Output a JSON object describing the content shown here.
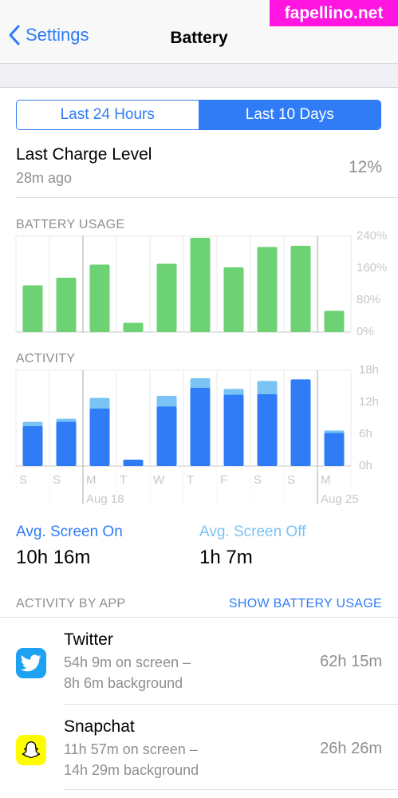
{
  "nav": {
    "back_label": "Settings",
    "title": "Battery"
  },
  "watermark": "fapellino.net",
  "segments": {
    "left": "Last 24 Hours",
    "right": "Last 10 Days",
    "selected": "right"
  },
  "last_charge": {
    "label": "Last Charge Level",
    "ago": "28m ago",
    "value": "12%"
  },
  "colors": {
    "accent": "#2f7cf6",
    "usage_green": "#6dd274",
    "screen_on": "#2f7cf6",
    "screen_off": "#7ac3f4"
  },
  "chart_data": [
    {
      "type": "bar",
      "title": "BATTERY USAGE",
      "categories": [
        "S",
        "S",
        "M",
        "T",
        "W",
        "T",
        "F",
        "S",
        "S",
        "M"
      ],
      "values": [
        117,
        136,
        169,
        23,
        171,
        236,
        162,
        213,
        216,
        53
      ],
      "y_ticks": [
        "240%",
        "160%",
        "80%",
        "0%"
      ],
      "ylim": [
        0,
        240
      ],
      "unit": "%"
    },
    {
      "type": "bar",
      "title": "ACTIVITY",
      "categories": [
        "S",
        "S",
        "M",
        "T",
        "W",
        "T",
        "F",
        "S",
        "S",
        "M"
      ],
      "series": [
        {
          "name": "Avg. Screen On",
          "values": [
            7.5,
            8.3,
            10.8,
            1.2,
            11.2,
            14.7,
            13.4,
            13.5,
            16.3,
            6.2
          ]
        },
        {
          "name": "Avg. Screen Off",
          "values": [
            0.8,
            0.6,
            2.0,
            0,
            2.0,
            1.8,
            1.1,
            2.5,
            0,
            0.5
          ]
        }
      ],
      "stacked": true,
      "y_ticks": [
        "18h",
        "12h",
        "6h",
        "0h"
      ],
      "ylim": [
        0,
        18
      ],
      "date_labels": [
        "Aug 18",
        "Aug 25"
      ]
    }
  ],
  "avg": {
    "on_label": "Avg. Screen On",
    "on_value": "10h 16m",
    "off_label": "Avg. Screen Off",
    "off_value": "1h 7m"
  },
  "activity_by_app": {
    "label": "ACTIVITY BY APP",
    "link": "SHOW BATTERY USAGE"
  },
  "apps": [
    {
      "name": "Twitter",
      "icon": "twitter-icon",
      "line1": "54h 9m on screen –",
      "line2": "8h 6m background",
      "time": "62h 15m"
    },
    {
      "name": "Snapchat",
      "icon": "snapchat-icon",
      "line1": "11h 57m on screen –",
      "line2": "14h 29m background",
      "time": "26h 26m"
    }
  ]
}
